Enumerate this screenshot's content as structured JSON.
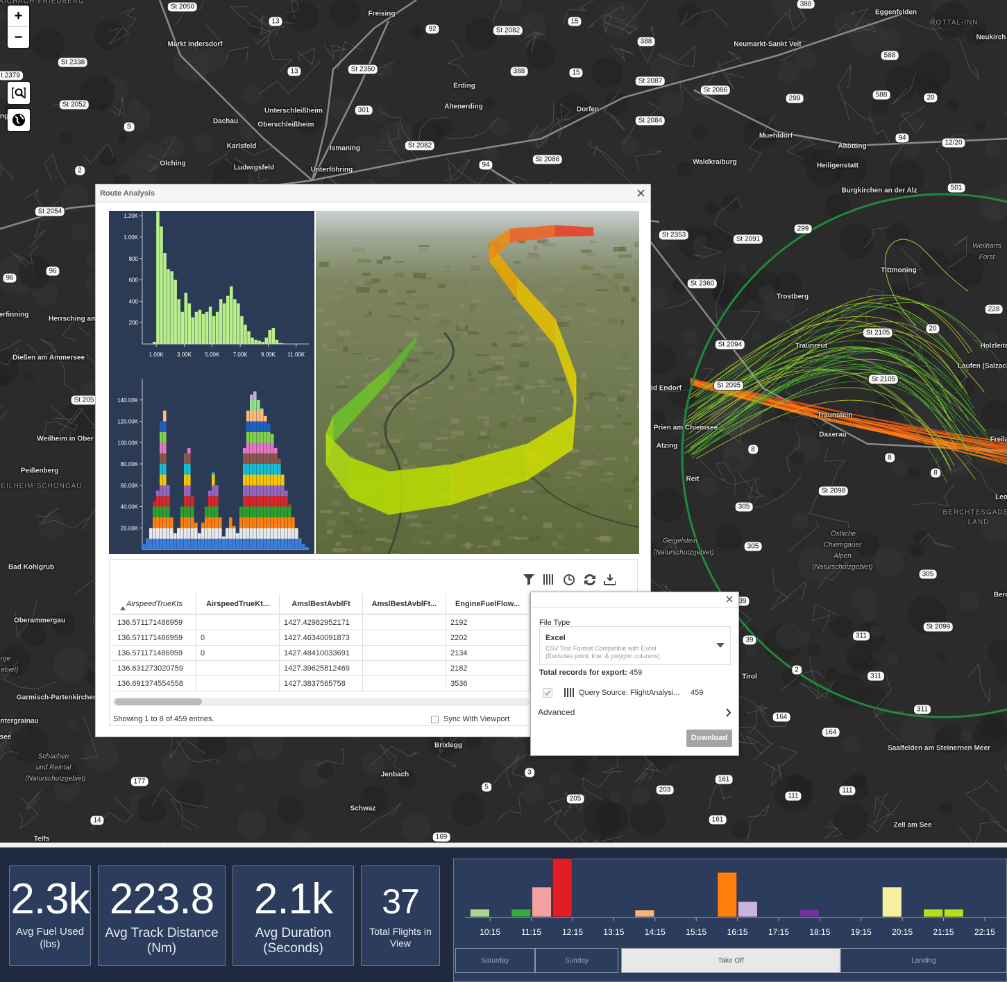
{
  "map": {
    "zoom_in": "+",
    "zoom_out": "−",
    "places": [
      "AICHACH-FRIEDBERG",
      "Freising",
      "Markt Indersdorf",
      "Erding",
      "Altenerding",
      "Unterschleißheim",
      "Oberschleißheim",
      "Dachau",
      "Karlsfeld",
      "Ismaning",
      "Unterföhring",
      "Olching",
      "Ludwigsfeld",
      "Dorfen",
      "Neumarkt-Sankt Veit",
      "Eggenfelden",
      "ROTTAL-INN",
      "Neukirch",
      "Muehldorf",
      "Altötting",
      "Waldkraiburg",
      "Heiligenstatt",
      "Burgkirchen an der Alz",
      "Weilharts",
      "Forst",
      "Tittmoning",
      "Trostberg",
      "Traunreut",
      "Holzleite",
      "Laufen (Salzach",
      "Daxerau",
      "Traunstein",
      "id Endorf",
      "Prien am Chiemsee",
      "Atzing",
      "Reit",
      "Freila",
      "BERCHTESGADEN",
      "LAND",
      "Östliche",
      "Chiemgauer",
      "Alpen",
      "(Naturschutzgebiet)",
      "Geigelstein",
      "(Naturschutzgebiet)",
      "Tirol",
      "Saalfelden am Steinernen Meer",
      "Zell am See",
      "Berc",
      "Brixlegg",
      "Jenbach",
      "Schwaz",
      "Telfs",
      "Schachen",
      "und Reintal",
      "(Naturschutzgebiet)",
      "Garmisch-Partenkirchen",
      "Oberammergau",
      "Bad Kohlgrub",
      "Peißenberg",
      "EILHEIM-SCHONGAU",
      "Weilheim in Ober",
      "Dießen am Ammersee",
      "Herrsching am",
      "erfinning",
      "ntergrainau",
      "see",
      "rge",
      "ebiet)",
      "Leo",
      "ng"
    ],
    "road_shields": [
      "St 2050",
      "13",
      "92",
      "St 2082",
      "15",
      "388",
      "388",
      "St 2338",
      "t 2379",
      "13",
      "St 2350",
      "388",
      "15",
      "St 2087",
      "St 2086",
      "588",
      "299",
      "588",
      "20",
      "St 2052",
      "301",
      "St 2084",
      "S",
      "St 2082",
      "94",
      "12/20",
      "94",
      "St 2086",
      "2",
      "501",
      "St 2054",
      "St 2353",
      "St 2091",
      "299",
      "96",
      "96",
      "St 2360",
      "228",
      "20",
      "St 2105",
      "St 2094",
      "St 2105",
      "St 2095",
      "St 205",
      "8",
      "8",
      "8",
      "St 2098",
      "305",
      "305",
      "305",
      "St 2099",
      "39",
      "311",
      "39",
      "311",
      "311",
      "164",
      "164",
      "161",
      "111",
      "111",
      "203",
      "205",
      "5",
      "3",
      "177",
      "14",
      "161",
      "169",
      "2"
    ]
  },
  "route_analysis": {
    "title": "Route Analysis",
    "altitude_histogram": {
      "type": "bar",
      "bins": [
        750,
        1000,
        1250,
        1500,
        1750,
        2000,
        2250,
        2500,
        2750,
        3000,
        3250,
        3500,
        3750,
        4000,
        4250,
        4500,
        4750,
        5000,
        5250,
        5500,
        5750,
        6000,
        6250,
        6500,
        6750,
        7000,
        7250,
        7500,
        7750,
        8000,
        8250,
        8500,
        8750,
        9000,
        9250,
        9500,
        9750,
        10000,
        10250,
        10500,
        10750,
        11000,
        11250
      ],
      "values": [
        20,
        1240,
        1100,
        850,
        700,
        680,
        600,
        420,
        300,
        480,
        380,
        250,
        300,
        320,
        280,
        300,
        350,
        260,
        300,
        420,
        380,
        450,
        540,
        420,
        380,
        260,
        180,
        120,
        60,
        40,
        30,
        20,
        60,
        130,
        150,
        40,
        10,
        5,
        0,
        0,
        0,
        0
      ],
      "color": "#b9f08c",
      "xlim": [
        0,
        11900
      ],
      "ylim": [
        0,
        1240
      ],
      "xticks": [
        {
          "value": 1000,
          "label": "1.00K"
        },
        {
          "value": 3000,
          "label": "3.00K"
        },
        {
          "value": 5000,
          "label": "5.00K"
        },
        {
          "value": 7000,
          "label": "7.00K"
        },
        {
          "value": 9000,
          "label": "9.00K"
        },
        {
          "value": 11000,
          "label": "11.00K"
        }
      ],
      "yticks": [
        200,
        400,
        600,
        800,
        {
          "value": 1000,
          "label": "1.00K"
        },
        {
          "value": 1200,
          "label": "1.20K"
        }
      ]
    },
    "stacked_histogram": {
      "type": "bar",
      "values": [
        5000,
        10000,
        20000,
        45000,
        55000,
        120000,
        130000,
        60000,
        30000,
        15000,
        20000,
        40000,
        90000,
        95000,
        50000,
        25000,
        15000,
        25000,
        40000,
        55000,
        72000,
        60000,
        30000,
        12000,
        20000,
        30000,
        22000,
        15000,
        40000,
        95000,
        130000,
        145000,
        148000,
        140000,
        132000,
        125000,
        118000,
        108000,
        95000,
        85000,
        70000,
        55000,
        42000,
        30000,
        20000,
        10000,
        5000,
        2000
      ],
      "ylim": [
        0,
        160000
      ],
      "yticks": [
        {
          "value": 20000,
          "label": "20.00K"
        },
        {
          "value": 40000,
          "label": "40.00K"
        },
        {
          "value": 60000,
          "label": "60.00K"
        },
        {
          "value": 80000,
          "label": "80.00K"
        },
        {
          "value": 100000,
          "label": "100.00K"
        },
        {
          "value": 120000,
          "label": "120.00K"
        },
        {
          "value": 140000,
          "label": "140.00K"
        }
      ]
    },
    "table": {
      "columns": [
        "AirspeedTrueKts",
        "AirspeedTrueKt...",
        "AmslBestAvblFt",
        "AmslBestAvblFt...",
        "EngineFuelFlow..."
      ],
      "rows": [
        [
          "136.571171486959",
          null,
          "1427.42982952171",
          null,
          "2192"
        ],
        [
          "136.571171486959",
          "0",
          "1427.46340091873",
          null,
          "2202"
        ],
        [
          "136.571171486959",
          "0",
          "1427.48410033691",
          null,
          "2134"
        ],
        [
          "136.631273020759",
          null,
          "1427.39625812469",
          null,
          "2182"
        ],
        [
          "136.691374554558",
          null,
          "1427.3837565758",
          null,
          "3536"
        ]
      ],
      "footer": "Showing 1 to 8 of 459 entries.",
      "sync_label": "Sync With Viewport"
    }
  },
  "export_dialog": {
    "file_type_label": "File Type",
    "file_type": "Excel",
    "file_type_description": "CSV Text Format Compatible with Excel",
    "file_type_note": "(Excludes point, line, & polygon columns).",
    "total_label": "Total records for export:",
    "total": 459,
    "source": "Query Source: FlightAnalysi...",
    "source_count": 459,
    "advanced": "Advanced",
    "download": "Download"
  },
  "kpis": [
    {
      "value": "2.3k",
      "label": "Avg Fuel Used (lbs)"
    },
    {
      "value": "223.8",
      "label": "Avg Track Distance (Nm)"
    },
    {
      "value": "2.1k",
      "label": "Avg Duration (Seconds)"
    },
    {
      "value": "37",
      "label": "Total Flights in View"
    }
  ],
  "timeline": {
    "type": "bar",
    "x": [
      10,
      11,
      11.5,
      12,
      14,
      16,
      16.5,
      18,
      20,
      21,
      21.5
    ],
    "values": [
      11,
      11,
      43,
      84,
      10,
      64,
      22,
      11,
      43,
      11,
      11
    ],
    "colors": [
      "#a9d98f",
      "#3aa83a",
      "#f4a0a0",
      "#e01c24",
      "#f6b47e",
      "#ff7f0e",
      "#c8b4dc",
      "#7030a0",
      "#f7f0a0",
      "#b4e01e",
      "#b4e01e"
    ],
    "xlim": [
      9.64,
      22.79
    ],
    "ylim": [
      0,
      84
    ],
    "xticks": [
      {
        "value": 10.25,
        "label": "10:15"
      },
      {
        "value": 11.25,
        "label": "11:15"
      },
      {
        "value": 12.25,
        "label": "12:15"
      },
      {
        "value": 13.25,
        "label": "13:15"
      },
      {
        "value": 14.25,
        "label": "14:15"
      },
      {
        "value": 15.25,
        "label": "15:15"
      },
      {
        "value": 16.25,
        "label": "16:15"
      },
      {
        "value": 17.25,
        "label": "17:15"
      },
      {
        "value": 18.25,
        "label": "18:15"
      },
      {
        "value": 19.25,
        "label": "19:15"
      },
      {
        "value": 20.25,
        "label": "20:15"
      },
      {
        "value": 21.25,
        "label": "21:15"
      },
      {
        "value": 22.25,
        "label": "22:15"
      }
    ]
  },
  "tabs": [
    "Saturday",
    "Sunday",
    "Take Off",
    "Landing"
  ]
}
